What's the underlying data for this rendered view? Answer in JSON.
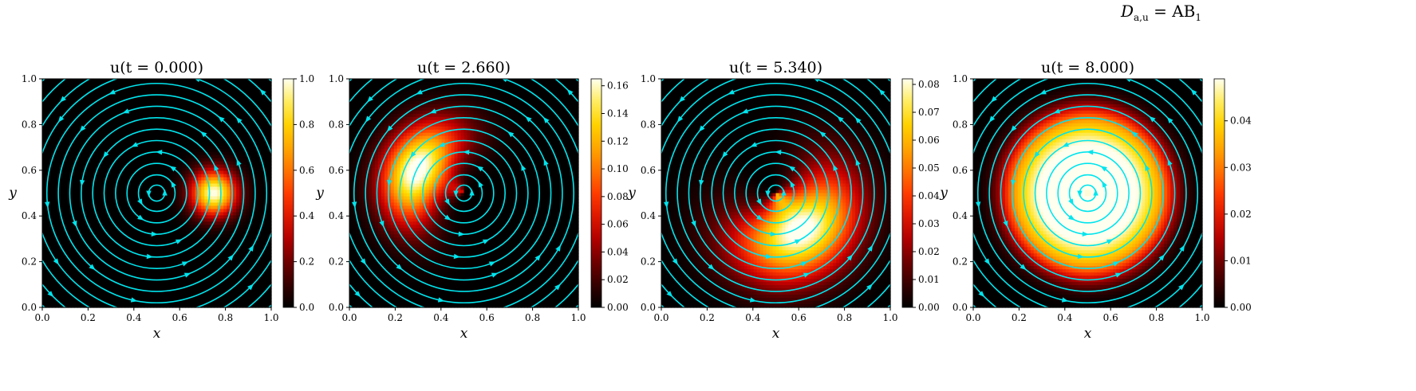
{
  "figure": {
    "suptitle_lhs": "D",
    "suptitle_sub": "a,u",
    "suptitle_rhs": "= AB",
    "suptitle_rhs_sub": "1"
  },
  "colors": {
    "streamline": "#00e5ee",
    "colormap": [
      "#000000",
      "#5a0000",
      "#c80000",
      "#ff3c00",
      "#ff9a00",
      "#ffe000",
      "#fffff0"
    ]
  },
  "chart_data": [
    {
      "type": "heatmap",
      "title": "u(t = 0.000)",
      "xlabel": "x",
      "ylabel": "y",
      "xlim": [
        0,
        1
      ],
      "ylim": [
        0,
        1
      ],
      "x_ticks": [
        "0.0",
        "0.2",
        "0.4",
        "0.6",
        "0.8",
        "1.0"
      ],
      "y_ticks": [
        "0.0",
        "0.2",
        "0.4",
        "0.6",
        "0.8",
        "1.0"
      ],
      "colorbar_range": [
        0,
        1.0
      ],
      "colorbar_ticks": [
        "0.0",
        "0.2",
        "0.4",
        "0.6",
        "0.8",
        "1.0"
      ],
      "blob": {
        "center": [
          0.75,
          0.5
        ],
        "width": 0.07,
        "peak_fraction": 1.0,
        "type": "gaussian"
      },
      "velocity_field": "counter-clockwise rotation about (0.5, 0.5)"
    },
    {
      "type": "heatmap",
      "title": "u(t = 2.660)",
      "xlabel": "x",
      "ylabel": "y",
      "xlim": [
        0,
        1
      ],
      "ylim": [
        0,
        1
      ],
      "x_ticks": [
        "0.0",
        "0.2",
        "0.4",
        "0.6",
        "0.8",
        "1.0"
      ],
      "y_ticks": [
        "0.0",
        "0.2",
        "0.4",
        "0.6",
        "0.8",
        "1.0"
      ],
      "colorbar_range": [
        0,
        0.165
      ],
      "colorbar_ticks": [
        "0.00",
        "0.02",
        "0.04",
        "0.06",
        "0.08",
        "0.10",
        "0.12",
        "0.14",
        "0.16"
      ],
      "blob": {
        "center": [
          0.3,
          0.6
        ],
        "width": 0.16,
        "peak_fraction": 1.0,
        "type": "crescent"
      },
      "velocity_field": "counter-clockwise rotation about (0.5, 0.5)"
    },
    {
      "type": "heatmap",
      "title": "u(t = 5.340)",
      "xlabel": "x",
      "ylabel": "y",
      "xlim": [
        0,
        1
      ],
      "ylim": [
        0,
        1
      ],
      "x_ticks": [
        "0.0",
        "0.2",
        "0.4",
        "0.6",
        "0.8",
        "1.0"
      ],
      "y_ticks": [
        "0.0",
        "0.2",
        "0.4",
        "0.6",
        "0.8",
        "1.0"
      ],
      "colorbar_range": [
        0,
        0.082
      ],
      "colorbar_ticks": [
        "0.00",
        "0.01",
        "0.02",
        "0.03",
        "0.04",
        "0.05",
        "0.06",
        "0.07",
        "0.08"
      ],
      "blob": {
        "center": [
          0.6,
          0.35
        ],
        "width": 0.22,
        "peak_fraction": 1.0,
        "type": "crescent"
      },
      "velocity_field": "counter-clockwise rotation about (0.5, 0.5)"
    },
    {
      "type": "heatmap",
      "title": "u(t = 8.000)",
      "xlabel": "x",
      "ylabel": "y",
      "xlim": [
        0,
        1
      ],
      "ylim": [
        0,
        1
      ],
      "x_ticks": [
        "0.0",
        "0.2",
        "0.4",
        "0.6",
        "0.8",
        "1.0"
      ],
      "y_ticks": [
        "0.0",
        "0.2",
        "0.4",
        "0.6",
        "0.8",
        "1.0"
      ],
      "colorbar_range": [
        0,
        0.049
      ],
      "colorbar_ticks": [
        "0.00",
        "0.01",
        "0.02",
        "0.03",
        "0.04"
      ],
      "blob": {
        "center": [
          0.5,
          0.5
        ],
        "width": 0.27,
        "peak_fraction": 1.0,
        "type": "ring"
      },
      "velocity_field": "counter-clockwise rotation about (0.5, 0.5)"
    }
  ]
}
